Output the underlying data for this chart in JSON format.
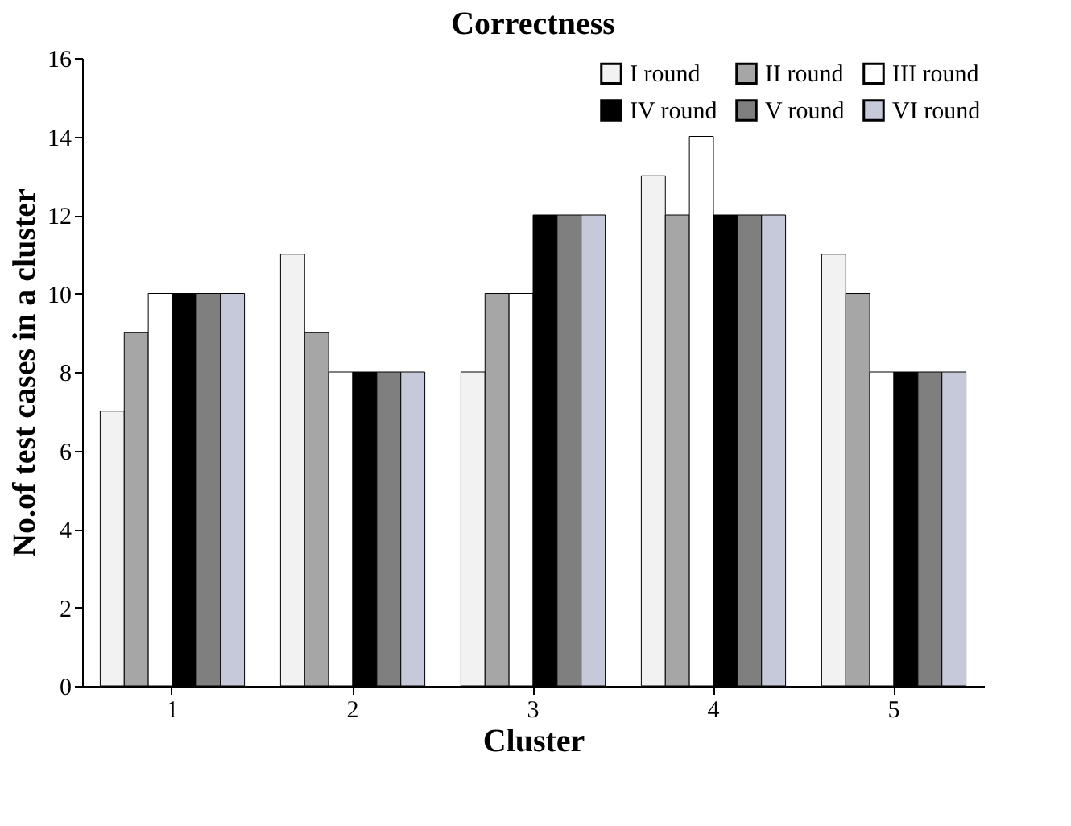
{
  "chart_data": {
    "type": "bar",
    "title": "Correctness",
    "xlabel": "Cluster",
    "ylabel": "No.of test cases in a cluster",
    "categories": [
      "1",
      "2",
      "3",
      "4",
      "5"
    ],
    "series": [
      {
        "name": "I round",
        "color": "#f2f2f2",
        "values": [
          7,
          11,
          8,
          13,
          11
        ]
      },
      {
        "name": "II round",
        "color": "#a6a6a6",
        "values": [
          9,
          9,
          10,
          12,
          10
        ]
      },
      {
        "name": "III round",
        "color": "#ffffff",
        "values": [
          10,
          8,
          10,
          14,
          8
        ]
      },
      {
        "name": "IV round",
        "color": "#000000",
        "values": [
          10,
          8,
          12,
          12,
          8
        ]
      },
      {
        "name": "V round",
        "color": "#7f7f7f",
        "values": [
          10,
          8,
          12,
          12,
          8
        ]
      },
      {
        "name": "VI round",
        "color": "#c5c9d9",
        "values": [
          10,
          8,
          12,
          12,
          8
        ]
      }
    ],
    "ylim": [
      0,
      16
    ],
    "yticks": [
      0,
      2,
      4,
      6,
      8,
      10,
      12,
      14,
      16
    ],
    "grid": false,
    "legend": "top right"
  }
}
